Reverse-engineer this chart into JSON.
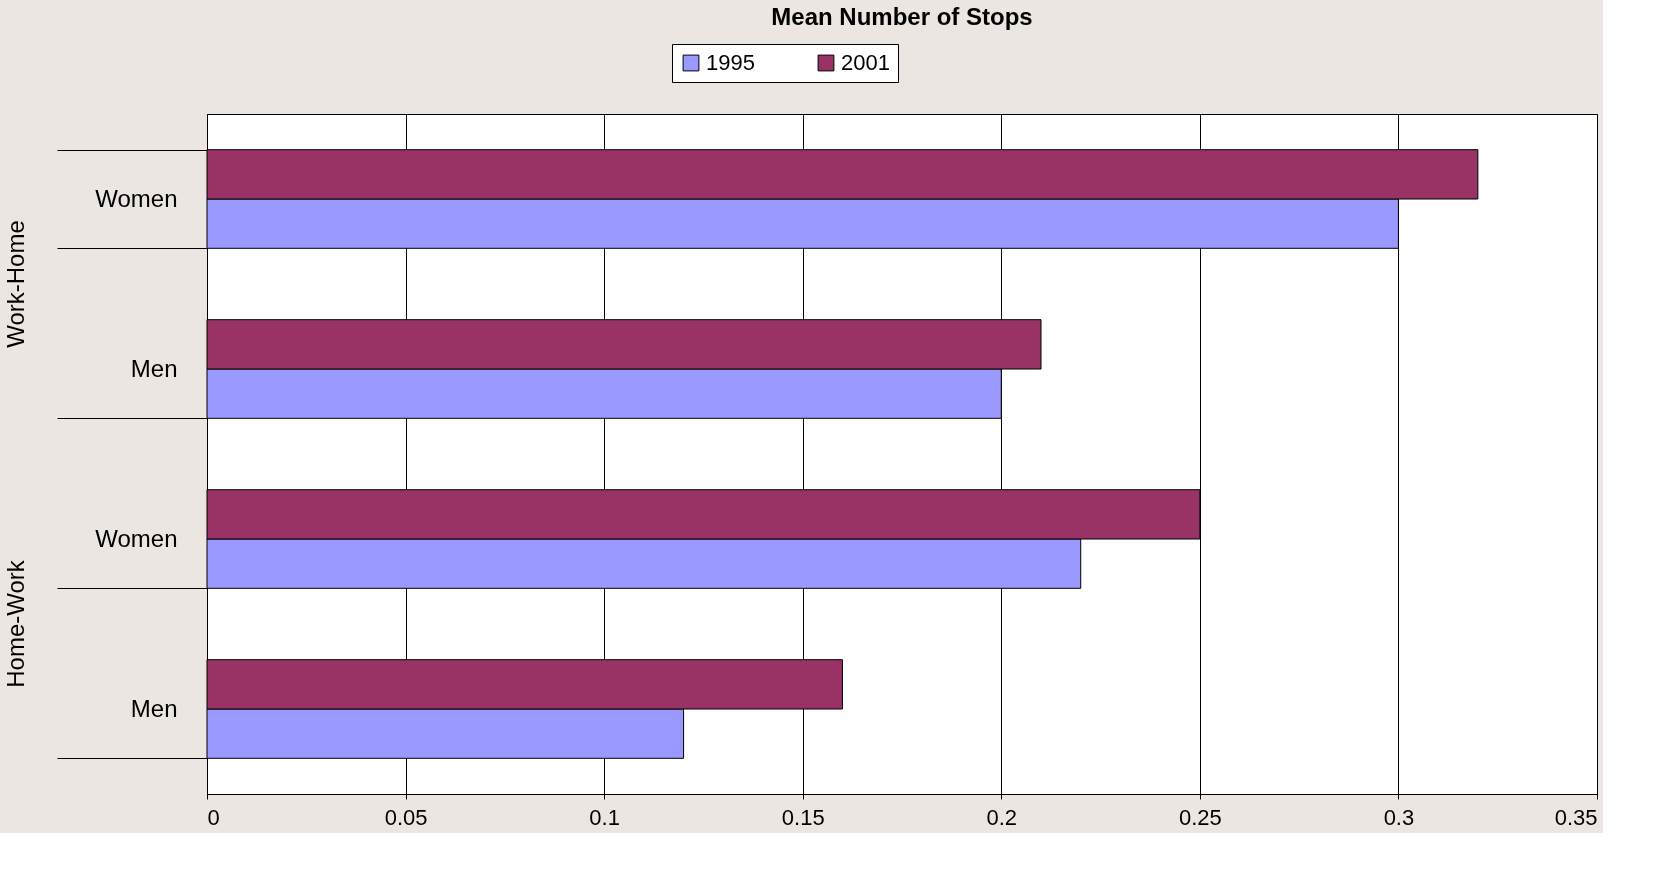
{
  "chart_data": {
    "type": "bar",
    "orientation": "horizontal",
    "title": "Mean Number of Stops",
    "categories": [
      "Women",
      "Men",
      "Women",
      "Men"
    ],
    "annotations": [
      "Work-Home",
      "Home-Work"
    ],
    "series": [
      {
        "name": "1995",
        "color": "#9999ff",
        "values": [
          0.3,
          0.2,
          0.22,
          0.12
        ]
      },
      {
        "name": "2001",
        "color": "#993366",
        "values": [
          0.32,
          0.21,
          0.25,
          0.16
        ]
      }
    ],
    "xlim": [
      0,
      0.35
    ],
    "xticks": [
      0,
      0.05,
      0.1,
      0.15,
      0.2,
      0.25,
      0.3,
      0.35
    ],
    "grid": "x",
    "legend": "top"
  }
}
